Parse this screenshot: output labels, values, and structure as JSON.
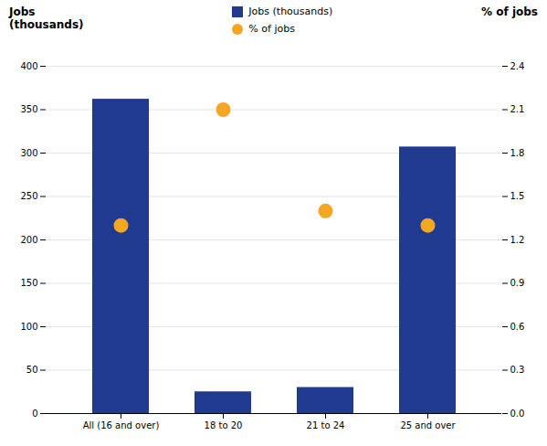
{
  "chart_data": {
    "type": "bar",
    "categories": [
      "All (16 and over)",
      "18 to 20",
      "21 to 24",
      "25 and over"
    ],
    "series": [
      {
        "name": "Jobs (thousands)",
        "type": "bar",
        "color": "#1f3a8f",
        "values": [
          362,
          25,
          30,
          307
        ]
      },
      {
        "name": "% of jobs",
        "type": "scatter",
        "marker": "circle",
        "color": "#f5a623",
        "axis": "y2",
        "values": [
          1.3,
          2.1,
          1.4,
          1.3
        ]
      }
    ],
    "ylabel": "Jobs\n(thousands)",
    "y2label": "% of jobs",
    "ylim": [
      0,
      400
    ],
    "yticks": [
      0,
      50,
      100,
      150,
      200,
      250,
      300,
      350,
      400
    ],
    "y2lim": [
      0,
      2.4
    ],
    "y2ticks": [
      {
        "value": 0,
        "label": "0.0"
      },
      0.3,
      0.6,
      0.9,
      1.2,
      1.5,
      1.8,
      2.1,
      2.4
    ],
    "grid": true,
    "legend": "top"
  }
}
